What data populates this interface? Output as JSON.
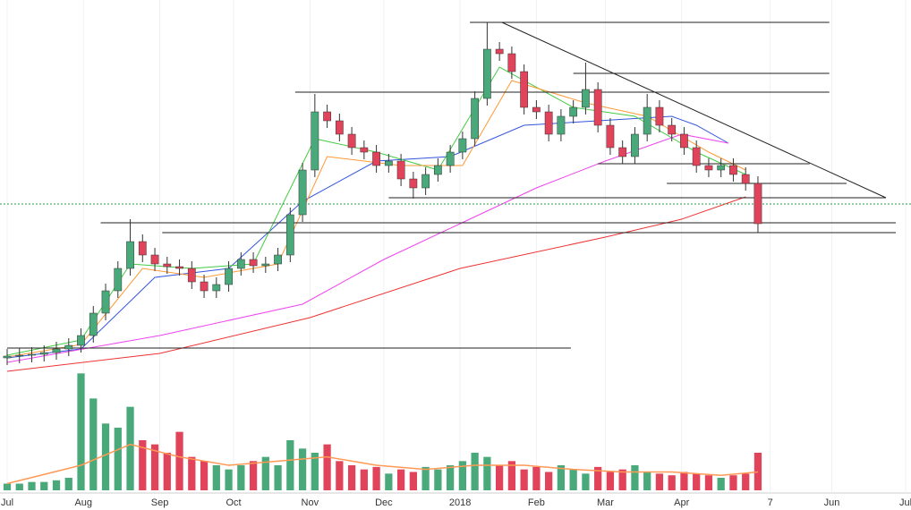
{
  "chart_data": {
    "type": "candlestick",
    "xlim": [
      0,
      365
    ],
    "ylim": [
      0,
      545
    ],
    "volume_ylim": [
      0,
      150
    ],
    "xticks": [
      {
        "value": 0,
        "label": "Jul"
      },
      {
        "value": 31,
        "label": "Aug"
      },
      {
        "value": 62,
        "label": "Sep"
      },
      {
        "value": 92,
        "label": "Oct"
      },
      {
        "value": 123,
        "label": "Nov"
      },
      {
        "value": 153,
        "label": "Dec"
      },
      {
        "value": 184,
        "label": "2018"
      },
      {
        "value": 215,
        "label": "Feb"
      },
      {
        "value": 243,
        "label": "Mar"
      },
      {
        "value": 274,
        "label": "Apr"
      },
      {
        "value": 310,
        "label": "7"
      },
      {
        "value": 335,
        "label": "Jun"
      },
      {
        "value": 365,
        "label": "Jul"
      }
    ],
    "grid": true,
    "up_color": "#4aa97a",
    "down_color": "#e0435a",
    "x": [
      0,
      5,
      10,
      15,
      20,
      25,
      30,
      35,
      40,
      45,
      50,
      55,
      60,
      65,
      70,
      75,
      80,
      85,
      90,
      95,
      100,
      105,
      110,
      115,
      120,
      125,
      130,
      135,
      140,
      145,
      150,
      155,
      160,
      165,
      170,
      175,
      180,
      185,
      190,
      195,
      200,
      205,
      210,
      215,
      220,
      225,
      230,
      235,
      240,
      245,
      250,
      255,
      260,
      265,
      270,
      275,
      280,
      285,
      290,
      295,
      300,
      305
    ],
    "open": [
      145,
      147,
      148,
      149,
      151,
      155,
      159,
      170,
      195,
      220,
      245,
      275,
      260,
      250,
      247,
      245,
      230,
      220,
      227,
      245,
      255,
      248,
      250,
      260,
      305,
      355,
      420,
      410,
      395,
      380,
      375,
      360,
      365,
      345,
      335,
      350,
      360,
      375,
      390,
      435,
      490,
      485,
      465,
      425,
      420,
      395,
      415,
      425,
      445,
      405,
      380,
      370,
      395,
      425,
      405,
      395,
      380,
      360,
      355,
      360,
      350,
      340
    ],
    "high": [
      155,
      156,
      157,
      159,
      163,
      167,
      178,
      203,
      228,
      253,
      300,
      283,
      268,
      258,
      255,
      253,
      238,
      235,
      253,
      263,
      263,
      258,
      268,
      313,
      363,
      440,
      428,
      418,
      403,
      388,
      383,
      373,
      373,
      353,
      358,
      368,
      383,
      398,
      443,
      520,
      498,
      493,
      473,
      433,
      428,
      423,
      433,
      475,
      453,
      413,
      388,
      403,
      440,
      433,
      413,
      403,
      388,
      368,
      368,
      368,
      358,
      348
    ],
    "low": [
      137,
      139,
      140,
      141,
      143,
      147,
      151,
      162,
      187,
      212,
      237,
      252,
      242,
      239,
      237,
      222,
      212,
      212,
      219,
      237,
      240,
      240,
      242,
      252,
      297,
      347,
      402,
      387,
      372,
      367,
      352,
      352,
      337,
      323,
      327,
      342,
      352,
      367,
      382,
      427,
      477,
      457,
      417,
      412,
      387,
      387,
      407,
      417,
      397,
      372,
      362,
      362,
      387,
      397,
      387,
      372,
      352,
      347,
      347,
      342,
      332,
      285
    ],
    "close": [
      147,
      148,
      149,
      151,
      155,
      159,
      170,
      195,
      220,
      245,
      275,
      260,
      250,
      247,
      245,
      230,
      220,
      227,
      245,
      255,
      248,
      250,
      260,
      305,
      355,
      420,
      410,
      395,
      380,
      375,
      360,
      365,
      345,
      335,
      350,
      360,
      375,
      390,
      435,
      490,
      485,
      465,
      425,
      420,
      395,
      415,
      425,
      445,
      405,
      380,
      370,
      395,
      425,
      405,
      395,
      380,
      360,
      355,
      360,
      350,
      340,
      295
    ],
    "volume": [
      8,
      8,
      10,
      10,
      12,
      15,
      140,
      110,
      80,
      75,
      100,
      60,
      55,
      45,
      70,
      40,
      35,
      30,
      25,
      30,
      35,
      40,
      30,
      60,
      50,
      45,
      55,
      35,
      30,
      25,
      28,
      20,
      25,
      22,
      28,
      25,
      30,
      35,
      45,
      40,
      30,
      35,
      25,
      28,
      22,
      30,
      25,
      20,
      28,
      22,
      25,
      30,
      22,
      20,
      18,
      22,
      20,
      18,
      15,
      18,
      20,
      45
    ],
    "lines": [
      {
        "color": "#3355dd",
        "x": [
          0,
          30,
          60,
          90,
          120,
          150,
          180,
          210,
          240,
          270,
          280,
          293
        ],
        "values": [
          145,
          155,
          235,
          245,
          320,
          365,
          370,
          405,
          410,
          415,
          405,
          385
        ]
      },
      {
        "color": "#44cc44",
        "x": [
          0,
          30,
          50,
          75,
          100,
          125,
          150,
          175,
          200,
          230,
          255,
          280,
          300
        ],
        "values": [
          148,
          165,
          250,
          245,
          250,
          390,
          375,
          355,
          470,
          425,
          415,
          375,
          350
        ]
      },
      {
        "color": "#ff9933",
        "x": [
          0,
          30,
          55,
          80,
          110,
          130,
          160,
          185,
          205,
          235,
          260,
          285,
          300
        ],
        "values": [
          146,
          160,
          245,
          235,
          250,
          370,
          360,
          360,
          455,
          430,
          415,
          375,
          355
        ]
      },
      {
        "color": "#ee44ee",
        "x": [
          0,
          62,
          120,
          153,
          184,
          215,
          243,
          274,
          293
        ],
        "values": [
          140,
          170,
          205,
          255,
          295,
          335,
          365,
          395,
          385
        ]
      },
      {
        "color": "#ee3333",
        "x": [
          0,
          62,
          123,
          184,
          243,
          274,
          300
        ],
        "values": [
          130,
          150,
          190,
          245,
          280,
          300,
          325
        ]
      }
    ],
    "volume_line": {
      "color": "#ff9955",
      "x": [
        0,
        30,
        50,
        70,
        90,
        110,
        130,
        150,
        170,
        190,
        210,
        230,
        250,
        270,
        290,
        305
      ],
      "values": [
        8,
        30,
        55,
        40,
        30,
        35,
        40,
        30,
        25,
        30,
        30,
        25,
        22,
        22,
        18,
        22
      ]
    },
    "levels": [
      {
        "value": 520,
        "x": [
          188,
          334
        ]
      },
      {
        "value": 463,
        "x": [
          230,
          334
        ]
      },
      {
        "value": 442,
        "x": [
          117,
          334
        ]
      },
      {
        "value": 362,
        "x": [
          240,
          326
        ]
      },
      {
        "value": 340,
        "x": [
          268,
          341
        ]
      },
      {
        "value": 324,
        "x": [
          155,
          357
        ]
      },
      {
        "value": 296,
        "x": [
          38,
          361
        ]
      },
      {
        "value": 285,
        "x": [
          63,
          361
        ]
      },
      {
        "value": 156,
        "x": [
          0,
          229
        ]
      }
    ],
    "trendline": {
      "x": [
        201,
        357
      ],
      "values": [
        520,
        324
      ]
    },
    "price_line": 317
  }
}
